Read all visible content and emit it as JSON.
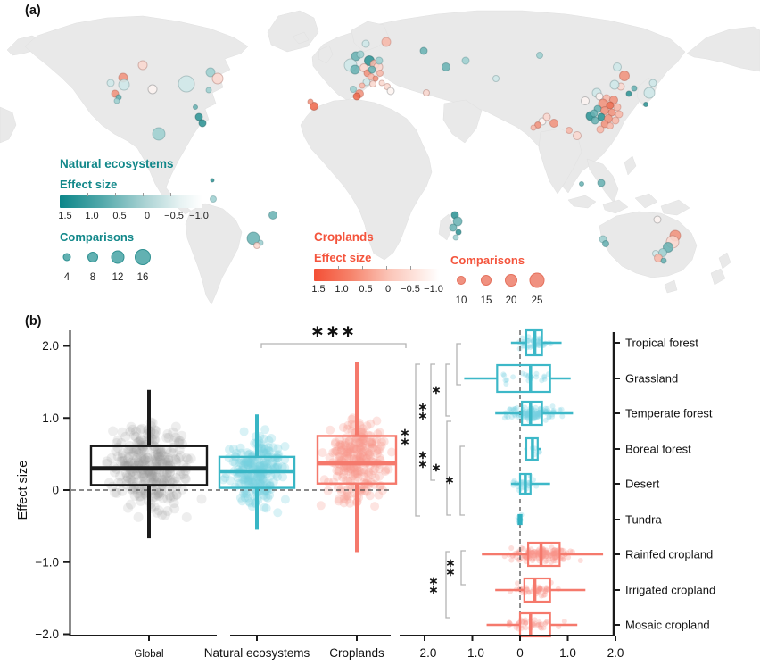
{
  "panel_a": {
    "label": "(a)",
    "legend_natural": {
      "title": "Natural ecosystems",
      "effect_title": "Effect size",
      "scale_labels": [
        "1.5",
        "1.0",
        "0.5",
        "0",
        "−0.5",
        "−1.0"
      ],
      "comparisons_title": "Comparisons",
      "comparison_labels": [
        "4",
        "8",
        "12",
        "16"
      ],
      "accent_color": "#12888a",
      "circle_fill": "#62b1b2",
      "circle_stroke": "#2f9192"
    },
    "legend_cropland": {
      "title": "Croplands",
      "effect_title": "Effect size",
      "scale_labels": [
        "1.5",
        "1.0",
        "0.5",
        "0",
        "−0.5",
        "−1.0"
      ],
      "comparisons_title": "Comparisons",
      "comparison_labels": [
        "10",
        "15",
        "20",
        "25"
      ],
      "accent_color": "#f4543c",
      "circle_fill": "#f09180",
      "circle_stroke": "#e4705c"
    },
    "map": {
      "land_color": "#e9e9e9",
      "palette": {
        "n0": [
          "#2f9596",
          "rgba(30,95,97,0.55)"
        ],
        "n1": [
          "#6ab3b4",
          "rgba(40,110,112,0.5)"
        ],
        "n2": [
          "#9fd0d1",
          "rgba(70,130,132,0.45)"
        ],
        "n3": [
          "#cfe8e9",
          "rgba(110,145,147,0.5)"
        ],
        "c0": [
          "#ee6a4e",
          "rgba(160,70,50,0.55)"
        ],
        "c1": [
          "#f2937e",
          "rgba(175,85,68,0.5)"
        ],
        "c2": [
          "#f7b9aa",
          "rgba(185,100,85,0.45)"
        ],
        "c3": [
          "#fbd9d0",
          "rgba(170,110,100,0.5)"
        ],
        "c4": [
          "#fdf4f1",
          "rgba(140,140,142,0.6)"
        ]
      },
      "dots": [
        [
          160,
          73,
          5,
          "c3"
        ],
        [
          138,
          87,
          5,
          "c1"
        ],
        [
          124,
          93,
          4,
          "n3"
        ],
        [
          139,
          95,
          6,
          "n3"
        ],
        [
          171,
          100,
          5,
          "c4"
        ],
        [
          209,
          94,
          9,
          "n3"
        ],
        [
          236,
          81,
          5,
          "n2"
        ],
        [
          244,
          88,
          6,
          "c3"
        ],
        [
          234,
          101,
          3,
          "n2"
        ],
        [
          129,
          105,
          4,
          "c1"
        ],
        [
          133,
          109,
          3,
          "n1"
        ],
        [
          131,
          113,
          3,
          "n2"
        ],
        [
          219,
          120,
          2.5,
          "n1"
        ],
        [
          223,
          131,
          4,
          "n0"
        ],
        [
          227,
          138,
          4,
          "n0"
        ],
        [
          178,
          150,
          7,
          "n2"
        ],
        [
          238,
          202,
          2,
          "n0"
        ],
        [
          239,
          223,
          3.5,
          "n2"
        ],
        [
          306,
          241,
          4.5,
          "n1"
        ],
        [
          284,
          267,
          7,
          "n1"
        ],
        [
          292,
          272,
          3,
          "n2"
        ],
        [
          288,
          275,
          3.5,
          "c3"
        ],
        [
          433,
          47,
          5,
          "c2"
        ],
        [
          410,
          49,
          4,
          "n3"
        ],
        [
          399,
          63,
          5,
          "n1"
        ],
        [
          404,
          61,
          4,
          "n2"
        ],
        [
          414,
          68,
          5.5,
          "n0"
        ],
        [
          393,
          73,
          7,
          "n3"
        ],
        [
          398,
          78,
          5,
          "n1"
        ],
        [
          420,
          72,
          5,
          "c2"
        ],
        [
          424,
          75,
          5,
          "c3"
        ],
        [
          425,
          68,
          4,
          "n2"
        ],
        [
          408,
          76,
          4.5,
          "c3"
        ],
        [
          412,
          82,
          4,
          "c1"
        ],
        [
          416,
          86,
          3.5,
          "c2"
        ],
        [
          421,
          88,
          3,
          "c1"
        ],
        [
          411,
          92,
          4,
          "n3"
        ],
        [
          418,
          94,
          3.5,
          "c3"
        ],
        [
          428,
          93,
          3,
          "c3"
        ],
        [
          434,
          97,
          3.5,
          "c3"
        ],
        [
          438,
          102,
          4,
          "c4"
        ],
        [
          403,
          105,
          4.5,
          "c1"
        ],
        [
          400,
          108,
          4,
          "c0"
        ],
        [
          396,
          100,
          3.5,
          "n2"
        ],
        [
          406,
          96,
          3,
          "c2"
        ],
        [
          417,
          78,
          4,
          "n1"
        ],
        [
          426,
          82,
          3.5,
          "c2"
        ],
        [
          475,
          57,
          4,
          "n1"
        ],
        [
          500,
          75,
          4.5,
          "n1"
        ],
        [
          522,
          68,
          4,
          "n2"
        ],
        [
          556,
          88,
          3.5,
          "n3"
        ],
        [
          605,
          62,
          3.5,
          "n2"
        ],
        [
          478,
          104,
          3.5,
          "c3"
        ],
        [
          352,
          119,
          4.5,
          "c0"
        ],
        [
          348,
          114,
          3,
          "c1"
        ],
        [
          510,
          241,
          4,
          "n0"
        ],
        [
          513,
          248,
          5,
          "n1"
        ],
        [
          508,
          255,
          4,
          "n1"
        ],
        [
          514,
          260,
          3,
          "n0"
        ],
        [
          511,
          266,
          3,
          "n2"
        ],
        [
          608,
          136,
          4,
          "c4"
        ],
        [
          621,
          138,
          4.5,
          "c1"
        ],
        [
          603,
          140,
          3.5,
          "c1"
        ],
        [
          613,
          131,
          4,
          "c3"
        ],
        [
          598,
          143,
          3,
          "c2"
        ],
        [
          647,
          152,
          4.5,
          "c3"
        ],
        [
          638,
          146,
          3.5,
          "c2"
        ],
        [
          692,
          75,
          4.5,
          "n3"
        ],
        [
          700,
          85,
          5.5,
          "c1"
        ],
        [
          696,
          97,
          4,
          "c3"
        ],
        [
          689,
          95,
          5,
          "n3"
        ],
        [
          705,
          105,
          3,
          "n0"
        ],
        [
          669,
          104,
          5,
          "n3"
        ],
        [
          656,
          113,
          4.5,
          "c4"
        ],
        [
          662,
          130,
          5,
          "n0"
        ],
        [
          667,
          135,
          4,
          "n1"
        ],
        [
          672,
          108,
          4,
          "c4"
        ],
        [
          680,
          110,
          4,
          "c2"
        ],
        [
          688,
          112,
          4.5,
          "c1"
        ],
        [
          676,
          116,
          5,
          "c1"
        ],
        [
          684,
          118,
          4,
          "c0"
        ],
        [
          692,
          120,
          4,
          "c2"
        ],
        [
          670,
          122,
          4,
          "n1"
        ],
        [
          678,
          124,
          4.5,
          "c1"
        ],
        [
          686,
          126,
          4,
          "c1"
        ],
        [
          694,
          128,
          4,
          "c2"
        ],
        [
          674,
          131,
          4,
          "n0"
        ],
        [
          682,
          133,
          4.5,
          "c1"
        ],
        [
          690,
          135,
          4,
          "c2"
        ],
        [
          678,
          139,
          4,
          "c1"
        ],
        [
          666,
          127,
          4,
          "n1"
        ],
        [
          684,
          141,
          3.5,
          "c2"
        ],
        [
          673,
          145,
          4,
          "c2"
        ],
        [
          728,
          104,
          6,
          "n3"
        ],
        [
          724,
          117,
          2.5,
          "n0"
        ],
        [
          732,
          93,
          4,
          "n3"
        ],
        [
          711,
          99,
          3,
          "n1"
        ],
        [
          674,
          205,
          4,
          "n1"
        ],
        [
          652,
          206,
          2.5,
          "n1"
        ],
        [
          737,
          246,
          4,
          "c4"
        ],
        [
          757,
          264,
          6,
          "c1"
        ],
        [
          754,
          271,
          7,
          "c3"
        ],
        [
          749,
          277,
          5.5,
          "n1"
        ],
        [
          743,
          283,
          4.5,
          "n2"
        ],
        [
          735,
          284,
          3.5,
          "n3"
        ],
        [
          738,
          289,
          4.5,
          "c2"
        ],
        [
          744,
          292,
          3,
          "n1"
        ],
        [
          676,
          268,
          4,
          "n2"
        ],
        [
          679,
          273,
          3.5,
          "n1"
        ]
      ]
    }
  },
  "panel_b": {
    "label": "(b)"
  },
  "chart_data": {
    "type": "boxplot",
    "ylabel": "Effect size",
    "left": {
      "ylim": [
        -2.05,
        2.25
      ],
      "yticks": [
        2,
        1,
        0,
        -1,
        -2
      ],
      "ytick_labels": [
        "2.0",
        "1.0",
        "0",
        "−1.0",
        "−2.0"
      ],
      "zero_line": true,
      "groups": [
        {
          "label": "Global",
          "color": "#1a1a1a",
          "jitter_color": "rgba(150,150,150,0.16)",
          "cx": 167,
          "hw": 65,
          "label_size": 11.5,
          "stats": {
            "low": -0.67,
            "q1": 0.07,
            "med": 0.3,
            "q3": 0.61,
            "high": 1.39
          },
          "jitter": {
            "n": 320,
            "mean": 0.3,
            "sd": 0.55,
            "xspread": 62,
            "r": 5.5
          }
        },
        {
          "label": "Natural ecosystems",
          "color": "#38b6c5",
          "jitter_color": "rgba(120,210,224,0.28)",
          "cx": 288,
          "hw": 42,
          "label_size": 13.5,
          "stats": {
            "low": -0.55,
            "q1": 0.03,
            "med": 0.26,
            "q3": 0.46,
            "high": 1.05
          },
          "jitter": {
            "n": 230,
            "mean": 0.27,
            "sd": 0.42,
            "xspread": 44,
            "r": 5
          }
        },
        {
          "label": "Croplands",
          "color": "#f5796c",
          "jitter_color": "rgba(249,150,140,0.26)",
          "cx": 400,
          "hw": 44,
          "label_size": 13.5,
          "stats": {
            "low": -0.86,
            "q1": 0.09,
            "med": 0.37,
            "q3": 0.75,
            "high": 1.78
          },
          "jitter": {
            "n": 250,
            "mean": 0.37,
            "sd": 0.52,
            "xspread": 46,
            "r": 5
          }
        }
      ],
      "significance": {
        "label_stars": 3,
        "x1": 293,
        "x2": 455,
        "y": 385,
        "lx": 374,
        "ly": 377
      }
    },
    "right": {
      "xlim": [
        -2.5,
        2.0
      ],
      "xticks": [
        -2,
        -1,
        0,
        1,
        2
      ],
      "xtick_labels": [
        "−2.0",
        "−1.0",
        "0",
        "1.0",
        "2.0"
      ],
      "zero_line": true,
      "rows": [
        {
          "label": "Tropical forest",
          "color": "#3db8c8",
          "y": 384,
          "hh": 14,
          "stats": [
            -0.19,
            0.13,
            0.31,
            0.46,
            0.87
          ],
          "jitter": {
            "n": 45,
            "mean": 0.3,
            "sd": 0.3
          }
        },
        {
          "label": "Grassland",
          "color": "#3db8c8",
          "y": 424,
          "hh": 15,
          "stats": [
            -1.17,
            -0.48,
            0.22,
            0.63,
            1.06
          ],
          "jitter": {
            "n": 22,
            "mean": 0.1,
            "sd": 0.6
          }
        },
        {
          "label": "Temperate forest",
          "color": "#3db8c8",
          "y": 463,
          "hh": 13,
          "stats": [
            -0.52,
            0.04,
            0.22,
            0.46,
            1.11
          ],
          "jitter": {
            "n": 130,
            "mean": 0.25,
            "sd": 0.45
          }
        },
        {
          "label": "Boreal forest",
          "color": "#3db8c8",
          "y": 503,
          "hh": 12,
          "stats": [
            0.09,
            0.13,
            0.26,
            0.37,
            0.44
          ],
          "jitter": {
            "n": 6,
            "mean": 0.25,
            "sd": 0.12
          }
        },
        {
          "label": "Desert",
          "color": "#3db8c8",
          "y": 542,
          "hh": 11,
          "stats": [
            -0.19,
            0.0,
            0.11,
            0.22,
            0.63
          ],
          "jitter": {
            "n": 25,
            "mean": 0.12,
            "sd": 0.3
          }
        },
        {
          "label": "Tundra",
          "color": "#2fb0c0",
          "y": 582,
          "hh": 5,
          "solid": true,
          "stats": [
            -0.05,
            -0.03,
            0.0,
            0.03,
            0.05
          ],
          "jitter": {
            "n": 5,
            "mean": 0.0,
            "sd": 0.05
          }
        },
        {
          "label": "Rainfed cropland",
          "color": "#f5796c",
          "y": 621,
          "hh": 13,
          "stats": [
            -0.8,
            0.17,
            0.44,
            0.83,
            1.74
          ],
          "jitter": {
            "n": 160,
            "mean": 0.45,
            "sd": 0.55
          }
        },
        {
          "label": "Irrigated cropland",
          "color": "#f5796c",
          "y": 661,
          "hh": 13,
          "stats": [
            -0.52,
            0.09,
            0.31,
            0.63,
            1.37
          ],
          "jitter": {
            "n": 45,
            "mean": 0.3,
            "sd": 0.45
          }
        },
        {
          "label": "Mosaic cropland",
          "color": "#f5796c",
          "y": 700,
          "hh": 13,
          "stats": [
            -0.7,
            0.0,
            0.22,
            0.63,
            1.2
          ],
          "jitter": {
            "n": 40,
            "mean": 0.25,
            "sd": 0.5
          }
        }
      ],
      "brackets": [
        [
          512,
          385,
          431
        ],
        [
          500,
          408,
          466
        ],
        [
          483,
          408,
          538
        ],
        [
          466,
          408,
          578
        ],
        [
          501,
          472,
          577
        ],
        [
          516,
          500,
          577
        ],
        [
          517,
          617,
          655
        ],
        [
          500,
          618,
          692
        ]
      ],
      "stars": [
        [
          489,
          437,
          1
        ],
        [
          474,
          461,
          2
        ],
        [
          454,
          490,
          2
        ],
        [
          474,
          515,
          2
        ],
        [
          489,
          524,
          1
        ],
        [
          504,
          538,
          1
        ],
        [
          505,
          636,
          2
        ],
        [
          486,
          656,
          2
        ]
      ]
    }
  }
}
